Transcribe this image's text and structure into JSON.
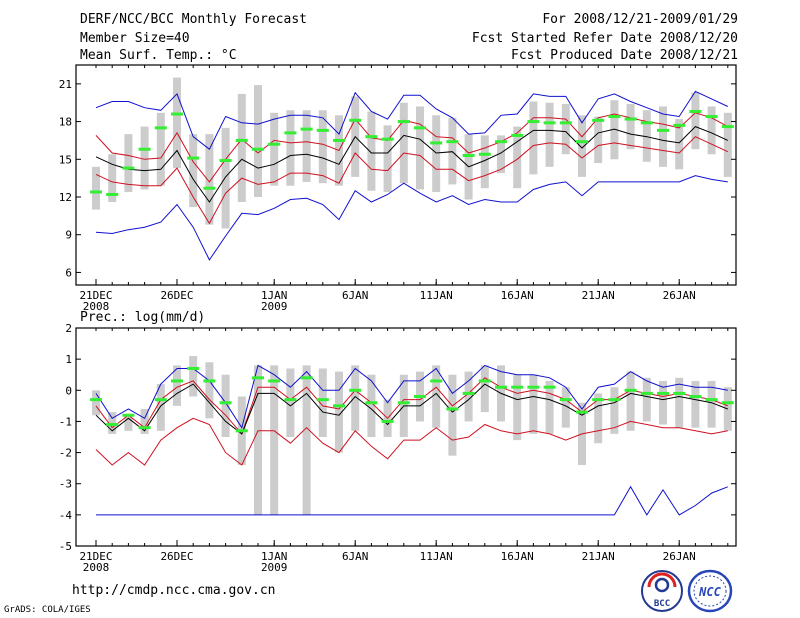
{
  "header": {
    "title": "DERF/NCC/BCC Monthly Forecast",
    "member_size": "Member Size=40",
    "variable": "Mean Surf. Temp.: °C",
    "forecast_period": "For 2008/12/21-2009/01/29",
    "start_date": "Fcst Started Refer Date 2008/12/20",
    "produced_date": "Fcst Produced Date 2008/12/21"
  },
  "footer": {
    "url": "http://cmdp.ncc.cma.gov.cn",
    "credit": "GrADS: COLA/IGES",
    "logo_left": "BCC",
    "logo_right": "NCC"
  },
  "colors": {
    "envelope": "#1010d0",
    "quartile": "#d01020",
    "mean": "#000000",
    "median": "#33ee33",
    "box": "#cccccc"
  },
  "chart_data": [
    {
      "type": "box",
      "title": "Mean Surf. Temp.: °C",
      "ylim": [
        5,
        22.5
      ],
      "yticks": [
        6,
        9,
        12,
        15,
        18,
        21
      ],
      "xticks": [
        {
          "day": 0,
          "label": "21DEC",
          "sub": "2008"
        },
        {
          "day": 5,
          "label": "26DEC",
          "sub": ""
        },
        {
          "day": 11,
          "label": "1JAN",
          "sub": "2009"
        },
        {
          "day": 16,
          "label": "6JAN",
          "sub": ""
        },
        {
          "day": 21,
          "label": "11JAN",
          "sub": ""
        },
        {
          "day": 26,
          "label": "16JAN",
          "sub": ""
        },
        {
          "day": 31,
          "label": "21JAN",
          "sub": ""
        },
        {
          "day": 36,
          "label": "26JAN",
          "sub": ""
        }
      ],
      "max": [
        19.1,
        19.6,
        19.6,
        19.1,
        18.9,
        20.2,
        16.8,
        15.8,
        18.4,
        17.9,
        17.8,
        18.2,
        18.5,
        18.5,
        18.3,
        17.0,
        20.3,
        18.8,
        18.2,
        20.1,
        20.1,
        19.0,
        18.3,
        17.0,
        17.1,
        18.5,
        18.6,
        20.2,
        20.0,
        20.0,
        17.9,
        19.8,
        20.2,
        19.6,
        19.1,
        18.6,
        18.4,
        20.4,
        19.8,
        19.2
      ],
      "q3": [
        16.9,
        15.5,
        15.3,
        15.0,
        15.1,
        17.1,
        14.8,
        13.2,
        15.0,
        16.6,
        15.5,
        16.5,
        16.3,
        16.4,
        16.2,
        15.7,
        18.2,
        16.7,
        16.5,
        18.1,
        17.8,
        16.8,
        16.7,
        15.5,
        15.9,
        16.4,
        17.1,
        18.3,
        18.3,
        18.2,
        16.8,
        18.3,
        18.6,
        18.3,
        18.0,
        17.8,
        17.5,
        18.7,
        18.3,
        17.6
      ],
      "mean": [
        15.2,
        14.6,
        14.2,
        14.1,
        14.2,
        15.7,
        13.4,
        11.6,
        13.6,
        15.0,
        14.3,
        14.6,
        15.3,
        15.4,
        15.1,
        14.6,
        16.8,
        15.5,
        15.5,
        16.9,
        16.6,
        15.5,
        15.6,
        14.4,
        14.9,
        15.5,
        16.4,
        17.3,
        17.3,
        17.2,
        15.9,
        17.1,
        17.4,
        17.0,
        16.8,
        16.5,
        16.3,
        17.6,
        17.1,
        16.5
      ],
      "q1": [
        13.8,
        13.2,
        13.0,
        12.9,
        12.9,
        14.3,
        12.0,
        9.9,
        12.3,
        13.5,
        13.0,
        13.2,
        13.9,
        13.9,
        13.7,
        13.1,
        15.5,
        14.2,
        14.1,
        15.5,
        15.3,
        14.2,
        14.2,
        13.3,
        13.7,
        14.2,
        15.0,
        16.1,
        16.3,
        16.2,
        15.1,
        16.1,
        16.3,
        16.1,
        15.9,
        15.7,
        15.5,
        16.8,
        16.2,
        15.6
      ],
      "min": [
        9.2,
        9.1,
        9.4,
        9.6,
        10.0,
        11.4,
        9.6,
        7.0,
        8.9,
        10.7,
        10.6,
        11.1,
        11.8,
        11.9,
        11.4,
        10.2,
        12.5,
        11.6,
        12.2,
        13.1,
        12.3,
        11.6,
        12.1,
        11.4,
        11.8,
        11.6,
        11.6,
        12.6,
        13.0,
        13.2,
        12.1,
        13.2,
        13.2,
        13.2,
        13.2,
        13.2,
        13.2,
        13.7,
        13.4,
        13.2
      ],
      "box_lo": [
        11.0,
        11.6,
        12.4,
        12.6,
        12.9,
        14.3,
        11.2,
        9.8,
        9.5,
        11.6,
        12.0,
        12.9,
        12.9,
        13.2,
        13.1,
        12.9,
        13.6,
        12.5,
        12.4,
        13.1,
        12.6,
        12.4,
        13.0,
        11.8,
        12.7,
        13.9,
        12.7,
        13.8,
        14.4,
        15.4,
        13.6,
        14.7,
        15.0,
        15.8,
        14.8,
        14.4,
        14.2,
        15.8,
        15.4,
        13.6
      ],
      "box_hi": [
        14.4,
        15.4,
        17.0,
        17.6,
        18.7,
        21.5,
        17.0,
        17.0,
        17.5,
        20.2,
        20.9,
        18.7,
        18.9,
        18.9,
        18.9,
        18.5,
        20.0,
        18.8,
        17.7,
        19.5,
        19.2,
        18.5,
        18.3,
        17.0,
        16.9,
        16.9,
        17.6,
        19.6,
        19.5,
        19.4,
        18.5,
        18.4,
        19.7,
        19.4,
        18.9,
        19.2,
        18.2,
        20.3,
        19.2,
        18.7
      ],
      "median": [
        12.4,
        12.2,
        14.3,
        15.8,
        17.5,
        18.6,
        15.1,
        12.7,
        14.9,
        16.5,
        15.8,
        16.2,
        17.1,
        17.4,
        17.3,
        16.5,
        18.1,
        16.8,
        16.6,
        18.0,
        17.5,
        16.3,
        16.4,
        15.3,
        15.4,
        16.4,
        16.9,
        18.0,
        17.9,
        17.9,
        16.4,
        18.1,
        18.4,
        18.2,
        17.9,
        17.3,
        17.7,
        18.8,
        18.4,
        17.6
      ]
    },
    {
      "type": "box",
      "title": "Prec.: log(mm/d)",
      "ylim": [
        -5,
        2
      ],
      "yticks": [
        -5,
        -4,
        -3,
        -2,
        -1,
        0,
        1,
        2
      ],
      "xticks": [
        {
          "day": 0,
          "label": "21DEC",
          "sub": "2008"
        },
        {
          "day": 5,
          "label": "26DEC",
          "sub": ""
        },
        {
          "day": 11,
          "label": "1JAN",
          "sub": "2009"
        },
        {
          "day": 16,
          "label": "6JAN",
          "sub": ""
        },
        {
          "day": 21,
          "label": "11JAN",
          "sub": ""
        },
        {
          "day": 26,
          "label": "16JAN",
          "sub": ""
        },
        {
          "day": 31,
          "label": "21JAN",
          "sub": ""
        },
        {
          "day": 36,
          "label": "26JAN",
          "sub": ""
        }
      ],
      "max": [
        -0.1,
        -0.9,
        -0.6,
        -0.9,
        0.2,
        0.7,
        0.7,
        0.3,
        -0.4,
        -1.2,
        0.8,
        0.5,
        0.1,
        0.6,
        0.0,
        0.0,
        0.7,
        0.3,
        -0.4,
        0.3,
        0.3,
        0.7,
        -0.1,
        0.3,
        0.8,
        0.6,
        0.5,
        0.5,
        0.4,
        0.1,
        -0.6,
        0.1,
        0.2,
        0.6,
        0.3,
        0.1,
        0.2,
        0.1,
        0.1,
        0.0
      ],
      "q3": [
        -0.5,
        -1.2,
        -0.8,
        -1.2,
        -0.3,
        0.1,
        0.3,
        -0.3,
        -0.8,
        -1.4,
        0.1,
        0.1,
        -0.3,
        0.1,
        -0.5,
        -0.6,
        0.0,
        -0.4,
        -0.9,
        -0.3,
        -0.3,
        0.1,
        -0.5,
        -0.1,
        0.4,
        0.1,
        -0.1,
        0.0,
        -0.1,
        -0.3,
        -0.7,
        -0.3,
        -0.3,
        0.0,
        -0.1,
        -0.2,
        -0.1,
        -0.2,
        -0.3,
        -0.5
      ],
      "mean": [
        -0.8,
        -1.3,
        -0.9,
        -1.3,
        -0.5,
        -0.1,
        0.2,
        -0.4,
        -1.0,
        -1.4,
        -0.1,
        -0.1,
        -0.5,
        -0.1,
        -0.7,
        -0.8,
        -0.2,
        -0.6,
        -1.1,
        -0.5,
        -0.5,
        -0.1,
        -0.7,
        -0.3,
        0.2,
        -0.1,
        -0.3,
        -0.2,
        -0.3,
        -0.5,
        -0.8,
        -0.5,
        -0.4,
        -0.1,
        -0.2,
        -0.3,
        -0.2,
        -0.3,
        -0.4,
        -0.6
      ],
      "q1": [
        -1.9,
        -2.4,
        -2.0,
        -2.4,
        -1.6,
        -1.2,
        -0.9,
        -1.1,
        -2.0,
        -2.4,
        -1.3,
        -1.3,
        -1.7,
        -1.2,
        -1.7,
        -2.0,
        -1.3,
        -1.8,
        -2.2,
        -1.6,
        -1.6,
        -1.2,
        -1.6,
        -1.5,
        -1.1,
        -1.3,
        -1.4,
        -1.3,
        -1.4,
        -1.6,
        -1.4,
        -1.3,
        -1.2,
        -1.0,
        -1.1,
        -1.2,
        -1.2,
        -1.3,
        -1.4,
        -1.3
      ],
      "min": [
        -4,
        -4,
        -4,
        -4,
        -4,
        -4,
        -4,
        -4,
        -4,
        -4,
        -4,
        -4,
        -4,
        -4,
        -4,
        -4,
        -4,
        -4,
        -4,
        -4,
        -4,
        -4,
        -4,
        -4,
        -4,
        -4,
        -4,
        -4,
        -4,
        -4,
        -4,
        -4,
        -4,
        -3.1,
        -4.0,
        -3.2,
        -4.0,
        -3.7,
        -3.3,
        -3.1
      ],
      "box_lo": [
        -0.8,
        -1.4,
        -1.3,
        -1.4,
        -1.3,
        -0.5,
        -0.2,
        -0.9,
        -1.5,
        -2.4,
        -4.0,
        -4.0,
        -1.5,
        -4.0,
        -1.5,
        -2.0,
        -1.3,
        -1.5,
        -1.5,
        -1.5,
        -1.0,
        -1.2,
        -2.1,
        -1.0,
        -0.7,
        -1.0,
        -1.6,
        -1.4,
        -1.4,
        -1.2,
        -2.4,
        -1.7,
        -1.4,
        -1.3,
        -1.0,
        -1.1,
        -1.2,
        -1.2,
        -1.2,
        -1.3
      ],
      "box_hi": [
        0.0,
        -0.7,
        -0.8,
        -0.6,
        0.2,
        0.8,
        1.1,
        0.9,
        0.5,
        -0.2,
        0.8,
        0.8,
        0.7,
        0.8,
        0.7,
        0.6,
        0.8,
        0.5,
        -0.3,
        0.5,
        0.6,
        0.8,
        0.5,
        0.6,
        0.8,
        0.8,
        0.5,
        0.5,
        0.3,
        0.1,
        -0.4,
        -0.1,
        0.1,
        0.6,
        0.4,
        0.3,
        0.4,
        0.3,
        0.3,
        0.1
      ],
      "median": [
        -0.3,
        -1.1,
        -0.8,
        -1.2,
        -0.3,
        0.3,
        0.7,
        0.3,
        -0.4,
        -1.3,
        0.4,
        0.3,
        -0.3,
        0.4,
        -0.3,
        -0.5,
        0.0,
        -0.4,
        -1.0,
        -0.4,
        -0.2,
        0.3,
        -0.6,
        -0.1,
        0.3,
        0.1,
        0.1,
        0.1,
        0.1,
        -0.3,
        -0.7,
        -0.3,
        -0.3,
        0.0,
        -0.1,
        -0.1,
        -0.1,
        -0.2,
        -0.3,
        -0.4
      ]
    }
  ]
}
